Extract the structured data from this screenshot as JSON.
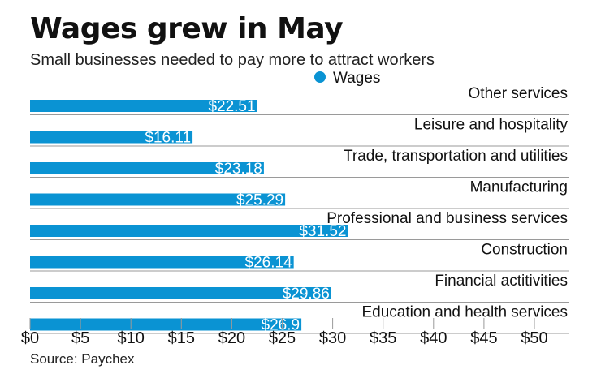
{
  "header": {
    "title": "Wages grew in May",
    "subtitle": "Small businesses needed to pay more to attract workers"
  },
  "footer": {
    "source": "Source: Paychex"
  },
  "chart_data": {
    "type": "bar",
    "orientation": "horizontal",
    "title": "Wages grew in May",
    "subtitle": "Small businesses needed to pay more to attract workers",
    "categories": [
      "Other services",
      "Leisure and hospitality",
      "Trade, transportation and utilities",
      "Manufacturing",
      "Professional and business services",
      "Construction",
      "Financial actitivities",
      "Education and health services"
    ],
    "series": [
      {
        "name": "Wages",
        "values": [
          22.51,
          16.11,
          23.18,
          25.29,
          31.52,
          26.14,
          29.86,
          26.9
        ],
        "labels": [
          "$22.51",
          "$16.11",
          "$23.18",
          "$25.29",
          "$31.52",
          "$26.14",
          "$29.86",
          "$26.9"
        ],
        "color": "#0a93d3"
      }
    ],
    "xlim": [
      0,
      50
    ],
    "x_ticks": [
      0,
      5,
      10,
      15,
      20,
      25,
      30,
      35,
      40,
      45,
      50
    ],
    "x_tick_labels": [
      "$0",
      "$5",
      "$10",
      "$15",
      "$20",
      "$25",
      "$30",
      "$35",
      "$40",
      "$45",
      "$50"
    ],
    "xlabel": "",
    "ylabel": "",
    "grid": false,
    "legend_position": "top-center",
    "separator_color": "#9a9a9a"
  }
}
